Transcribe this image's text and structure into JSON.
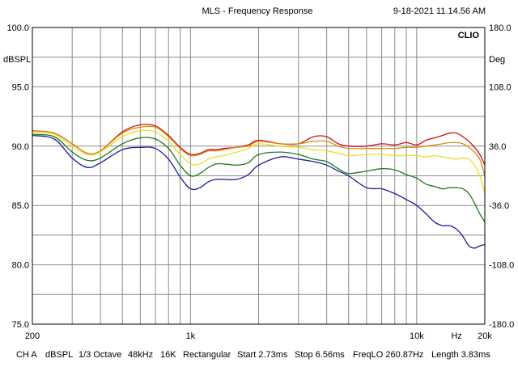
{
  "header": {
    "title": "MLS - Frequency Response",
    "timestamp": "9-18-2021 11.14.56 AM",
    "brand": "CLIO"
  },
  "footer": {
    "channel": "CH A",
    "unit": "dBSPL",
    "smoothing": "1/3 Octave",
    "sample_rate": "48kHz",
    "size": "16K",
    "window": "Rectangular",
    "start": "Start 2.73ms",
    "stop": "Stop 6.56ms",
    "freqlo": "FreqLO 260.87Hz",
    "length": "Length 3.83ms"
  },
  "chart_data": {
    "type": "line",
    "title": "MLS - Frequency Response",
    "ylabel_left": "dBSPL",
    "ylabel_right": "Deg",
    "xlabel": "Hz",
    "xscale": "log",
    "xlim": [
      200,
      20000
    ],
    "ylim": [
      75,
      100
    ],
    "ylim_right": [
      -180,
      180
    ],
    "yticks_left": [
      "75.0",
      "80.0",
      "85.0",
      "90.0",
      "95.0",
      "100.0"
    ],
    "yticks_right": [
      "-180.0",
      "-108.0",
      "-36.0",
      "36.0",
      "108.0",
      "180.0"
    ],
    "xtick_labels": [
      {
        "f": 200,
        "label": "200"
      },
      {
        "f": 1000,
        "label": "1k"
      },
      {
        "f": 10000,
        "label": "10k"
      },
      {
        "f": 15000,
        "label": "Hz"
      },
      {
        "f": 20000,
        "label": "20k"
      }
    ],
    "grid": true,
    "x": [
      200,
      250,
      300,
      350,
      400,
      500,
      600,
      700,
      800,
      900,
      1000,
      1100,
      1200,
      1300,
      1400,
      1600,
      1800,
      2000,
      2500,
      3000,
      3500,
      4000,
      4500,
      5000,
      6000,
      7000,
      8000,
      9000,
      10000,
      11000,
      12000,
      13000,
      14000,
      15000,
      16000,
      17000,
      18000,
      19000,
      20000
    ],
    "series": [
      {
        "name": "red",
        "color": "#cc1111",
        "values": [
          91.3,
          91.1,
          90.2,
          89.4,
          89.6,
          91.2,
          91.8,
          91.7,
          90.9,
          89.9,
          89.3,
          89.4,
          89.7,
          89.7,
          89.8,
          89.9,
          90.1,
          90.5,
          90.2,
          90.2,
          90.8,
          90.8,
          90.2,
          90.0,
          90.0,
          90.2,
          90.1,
          90.3,
          90.1,
          90.5,
          90.7,
          90.9,
          91.1,
          91.1,
          90.8,
          90.4,
          89.9,
          89.3,
          88.4
        ]
      },
      {
        "name": "orange",
        "color": "#d98c1a",
        "values": [
          91.3,
          91.1,
          90.2,
          89.4,
          89.6,
          91.1,
          91.6,
          91.6,
          90.8,
          89.8,
          89.2,
          89.3,
          89.6,
          89.6,
          89.7,
          89.9,
          90.0,
          90.4,
          90.2,
          90.2,
          90.4,
          90.4,
          90.0,
          89.8,
          89.8,
          89.8,
          89.8,
          89.9,
          89.9,
          90.0,
          90.1,
          90.2,
          90.3,
          90.3,
          90.2,
          89.9,
          89.5,
          88.9,
          87.5
        ]
      },
      {
        "name": "yellow",
        "color": "#e8e020",
        "values": [
          91.2,
          91.0,
          90.0,
          89.3,
          89.5,
          90.8,
          91.3,
          91.2,
          90.4,
          89.3,
          88.5,
          88.5,
          88.9,
          89.1,
          89.2,
          89.5,
          89.8,
          90.2,
          90.0,
          89.9,
          89.7,
          89.6,
          89.4,
          89.2,
          89.3,
          89.3,
          89.2,
          89.2,
          89.2,
          89.1,
          89.2,
          89.1,
          89.0,
          88.9,
          89.0,
          88.9,
          88.4,
          87.5,
          86.0
        ]
      },
      {
        "name": "green",
        "color": "#1a7a1a",
        "values": [
          91.0,
          90.8,
          89.5,
          88.8,
          89.0,
          90.2,
          90.7,
          90.6,
          89.8,
          88.4,
          87.5,
          87.7,
          88.2,
          88.5,
          88.5,
          88.4,
          88.6,
          89.3,
          89.5,
          89.3,
          88.9,
          88.7,
          88.1,
          87.7,
          87.9,
          88.1,
          88.0,
          87.6,
          87.3,
          86.8,
          86.6,
          86.4,
          86.5,
          86.5,
          86.4,
          86.0,
          85.2,
          84.3,
          83.6
        ]
      },
      {
        "name": "blue",
        "color": "#1a1aa0",
        "values": [
          90.9,
          90.6,
          89.0,
          88.2,
          88.6,
          89.7,
          89.9,
          89.8,
          88.9,
          87.4,
          86.4,
          86.5,
          87.0,
          87.2,
          87.2,
          87.2,
          87.6,
          88.4,
          89.1,
          88.9,
          88.7,
          88.4,
          87.9,
          87.5,
          86.5,
          86.4,
          86.0,
          85.5,
          85.0,
          84.3,
          83.6,
          83.3,
          83.3,
          83.0,
          82.4,
          81.6,
          81.4,
          81.6,
          81.7
        ]
      }
    ]
  }
}
